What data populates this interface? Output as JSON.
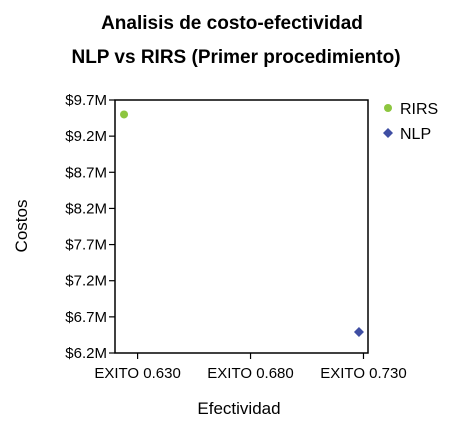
{
  "chart_data": {
    "type": "scatter",
    "title": "Analisis de costo-efectividad",
    "subtitle": "NLP vs RIRS (Primer procedimiento)",
    "xlabel": "Efectividad",
    "ylabel": "Costos",
    "xlim": [
      0.62,
      0.732
    ],
    "ylim": [
      6200000,
      9700000
    ],
    "x_ticks": [
      {
        "value": 0.63,
        "label": "EXITO 0.630"
      },
      {
        "value": 0.68,
        "label": "EXITO 0.680"
      },
      {
        "value": 0.73,
        "label": "EXITO 0.730"
      }
    ],
    "y_ticks": [
      {
        "value": 9700000,
        "label": "$9.7M"
      },
      {
        "value": 9200000,
        "label": "$9.2M"
      },
      {
        "value": 8700000,
        "label": "$8.7M"
      },
      {
        "value": 8200000,
        "label": "$8.2M"
      },
      {
        "value": 7700000,
        "label": "$7.7M"
      },
      {
        "value": 7200000,
        "label": "$7.2M"
      },
      {
        "value": 6700000,
        "label": "$6.7M"
      },
      {
        "value": 6200000,
        "label": "$6.2M"
      }
    ],
    "grid": false,
    "legend_position": "right",
    "series": [
      {
        "name": "RIRS",
        "marker": "circle",
        "color": "#8dc63f",
        "points": [
          {
            "x": 0.624,
            "y": 9500000
          }
        ]
      },
      {
        "name": "NLP",
        "marker": "diamond",
        "color": "#3f4ea3",
        "points": [
          {
            "x": 0.728,
            "y": 6490000
          }
        ]
      }
    ]
  }
}
